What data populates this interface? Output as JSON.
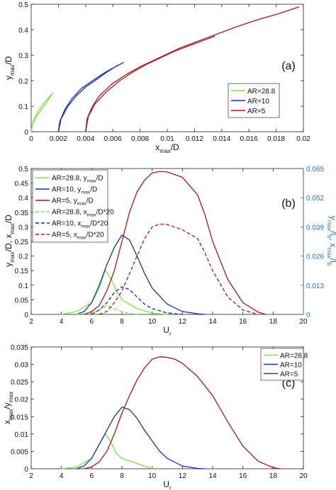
{
  "colors": {
    "green": "#7ee04a",
    "blue": "#1b2db0",
    "red": "#a5191b",
    "right_axis": "#2f6eb5",
    "axis": "#222222"
  },
  "chart_data": [
    {
      "type": "line",
      "panel_label": "(a)",
      "xlabel_main": "x",
      "xlabel_sub": "max",
      "xlabel_tail": "/D",
      "ylabel_main": "y",
      "ylabel_sub": "max",
      "ylabel_tail": "/D",
      "xlim": [
        0,
        0.02
      ],
      "ylim": [
        0,
        0.5
      ],
      "x_ticks": [
        0,
        0.002,
        0.004,
        0.006,
        0.008,
        0.01,
        0.012,
        0.014,
        0.016,
        0.018,
        0.02
      ],
      "x_tick_labels": [
        "0",
        "0.002",
        "0.004",
        "0.006",
        "0.008",
        "0.01",
        "0.012",
        "0.014",
        "0.016",
        "0.018",
        "0.02"
      ],
      "y_ticks": [
        0,
        0.1,
        0.2,
        0.3,
        0.4,
        0.5
      ],
      "y_tick_labels": [
        "0",
        "0.1",
        "0.2",
        "0.3",
        "0.4",
        "0.5"
      ],
      "legend_position": "middle-right",
      "series": [
        {
          "name": "AR=28.8",
          "color": "#7ee04a",
          "dash": false,
          "x": [
            0,
            5e-05,
            0.0002,
            0.0005,
            0.0009,
            0.0013,
            0.0016
          ],
          "y": [
            0,
            0.02,
            0.05,
            0.08,
            0.11,
            0.135,
            0.153
          ]
        },
        {
          "name": "",
          "color": "#7ee04a",
          "dash": false,
          "legend": false,
          "x": [
            0,
            0.0001,
            0.0004,
            0.0008,
            0.0012,
            0.0015
          ],
          "y": [
            0,
            0.03,
            0.06,
            0.09,
            0.12,
            0.145
          ]
        },
        {
          "name": "AR=10",
          "color": "#1b2db0",
          "dash": false,
          "x": [
            0.002,
            0.0021,
            0.0025,
            0.003,
            0.0037,
            0.0045,
            0.0055,
            0.0062,
            0.0068
          ],
          "y": [
            0,
            0.04,
            0.09,
            0.13,
            0.17,
            0.2,
            0.235,
            0.255,
            0.272
          ]
        },
        {
          "name": "",
          "color": "#1b2db0",
          "dash": false,
          "legend": false,
          "x": [
            0.002,
            0.0022,
            0.0027,
            0.0033,
            0.004,
            0.0048,
            0.0056,
            0.0064
          ],
          "y": [
            0,
            0.05,
            0.1,
            0.14,
            0.175,
            0.205,
            0.235,
            0.262
          ]
        },
        {
          "name": "AR=5",
          "color": "#a5191b",
          "dash": false,
          "x": [
            0.004,
            0.0041,
            0.0045,
            0.005,
            0.006,
            0.007,
            0.008,
            0.009,
            0.01,
            0.011,
            0.012,
            0.013,
            0.014,
            0.015,
            0.016,
            0.017,
            0.018,
            0.0197
          ],
          "y": [
            0,
            0.05,
            0.1,
            0.14,
            0.19,
            0.225,
            0.255,
            0.28,
            0.305,
            0.33,
            0.35,
            0.37,
            0.39,
            0.41,
            0.428,
            0.445,
            0.46,
            0.49
          ]
        },
        {
          "name": "",
          "color": "#a5191b",
          "dash": false,
          "legend": false,
          "x": [
            0.004,
            0.0042,
            0.0047,
            0.0055,
            0.0065,
            0.0075,
            0.0085,
            0.0095,
            0.0105,
            0.0115,
            0.0125,
            0.0135
          ],
          "y": [
            0,
            0.06,
            0.11,
            0.155,
            0.2,
            0.235,
            0.265,
            0.29,
            0.315,
            0.335,
            0.355,
            0.375
          ]
        }
      ]
    },
    {
      "type": "line",
      "panel_label": "(b)",
      "xlabel_main": "U",
      "xlabel_sub": "r",
      "left_ylabel": [
        "y",
        "max",
        "/D,  x",
        "max",
        "/D"
      ],
      "right_ylabel": [
        "y",
        "max",
        "/l",
        "b",
        ", x",
        "max",
        "/l",
        "b"
      ],
      "xlim": [
        2,
        20
      ],
      "ylim": [
        0,
        0.5
      ],
      "ylim_right": [
        0,
        0.065
      ],
      "x_ticks": [
        2,
        4,
        6,
        8,
        10,
        12,
        14,
        16,
        18,
        20
      ],
      "x_tick_labels": [
        "2",
        "4",
        "6",
        "8",
        "10",
        "12",
        "14",
        "16",
        "18",
        "20"
      ],
      "y_ticks": [
        0,
        0.05,
        0.1,
        0.15,
        0.2,
        0.25,
        0.3,
        0.35,
        0.4,
        0.45,
        0.5
      ],
      "y_tick_labels": [
        "0",
        "0.05",
        "0.1",
        "0.15",
        "0.2",
        "0.25",
        "0.3",
        "0.35",
        "0.4",
        "0.45",
        "0.5"
      ],
      "y_ticks_right": [
        0,
        0.013,
        0.026,
        0.039,
        0.052,
        0.065
      ],
      "y_tick_labels_right": [
        "0",
        "0.013",
        "0.026",
        "0.039",
        "0.052",
        "0.065"
      ],
      "legend_position": "top-left",
      "series": [
        {
          "name": "AR=28.8, y",
          "sub": "max",
          "tail": "/D",
          "color": "#7ee04a",
          "dash": false,
          "x": [
            4,
            5,
            6,
            6.5,
            6.9,
            7.3,
            7.6,
            8,
            9,
            10,
            11
          ],
          "y": [
            0,
            0.01,
            0.04,
            0.09,
            0.152,
            0.12,
            0.085,
            0.05,
            0.02,
            0.004,
            0
          ]
        },
        {
          "name": "AR=10, y",
          "sub": "max",
          "tail": "/D",
          "color": "#1b2db0",
          "dash": false,
          "x": [
            5,
            5.5,
            6,
            6.5,
            7,
            7.5,
            8,
            8.5,
            9,
            9.5,
            10,
            11,
            12,
            13,
            13.5
          ],
          "y": [
            0,
            0.01,
            0.04,
            0.1,
            0.17,
            0.23,
            0.272,
            0.255,
            0.2,
            0.14,
            0.09,
            0.035,
            0.01,
            0.002,
            0
          ]
        },
        {
          "name": "AR=5, y",
          "sub": "max",
          "tail": "/D",
          "color": "#a5191b",
          "dash": false,
          "x": [
            5.5,
            6,
            6.5,
            7,
            7.5,
            8,
            8.5,
            9,
            9.5,
            10,
            10.5,
            11,
            12,
            13,
            13.5,
            14,
            15,
            16,
            17,
            17.5
          ],
          "y": [
            0,
            0.01,
            0.03,
            0.08,
            0.15,
            0.25,
            0.35,
            0.42,
            0.46,
            0.485,
            0.49,
            0.488,
            0.47,
            0.41,
            0.34,
            0.25,
            0.12,
            0.04,
            0.008,
            0
          ]
        },
        {
          "name": "AR=28.8, x",
          "sub": "max",
          "tail": "/D*20",
          "color": "#7ee04a",
          "dash": true,
          "x": [
            5,
            6,
            6.5,
            7,
            7.5,
            8,
            8.5,
            9
          ],
          "y": [
            0,
            0.005,
            0.015,
            0.03,
            0.02,
            0.01,
            0.003,
            0
          ]
        },
        {
          "name": "AR=10, x",
          "sub": "max",
          "tail": "/D*20",
          "color": "#1b2db0",
          "dash": true,
          "x": [
            6,
            6.5,
            7,
            7.5,
            8,
            8.5,
            9,
            9.5,
            10,
            11,
            12
          ],
          "y": [
            0,
            0.015,
            0.04,
            0.075,
            0.095,
            0.085,
            0.06,
            0.035,
            0.02,
            0.005,
            0
          ]
        },
        {
          "name": "AR=5, x",
          "sub": "max",
          "tail": "/D*20",
          "color": "#a5191b",
          "dash": true,
          "x": [
            6.5,
            7,
            7.5,
            8,
            8.5,
            9,
            9.5,
            10,
            10.5,
            11,
            12,
            13,
            13.5,
            14,
            15,
            16,
            17
          ],
          "y": [
            0,
            0.01,
            0.04,
            0.08,
            0.14,
            0.2,
            0.26,
            0.3,
            0.31,
            0.308,
            0.29,
            0.26,
            0.21,
            0.15,
            0.06,
            0.015,
            0
          ]
        }
      ]
    },
    {
      "type": "line",
      "panel_label": "(c)",
      "xlabel_main": "U",
      "xlabel_sub": "r",
      "ylabel_parts": [
        "x",
        "max",
        "/y",
        "max"
      ],
      "xlim": [
        2,
        20
      ],
      "ylim": [
        0,
        0.035
      ],
      "x_ticks": [
        2,
        4,
        6,
        8,
        10,
        12,
        14,
        16,
        18,
        20
      ],
      "x_tick_labels": [
        "2",
        "4",
        "6",
        "8",
        "10",
        "12",
        "14",
        "16",
        "18",
        "20"
      ],
      "y_ticks": [
        0,
        0.005,
        0.01,
        0.015,
        0.02,
        0.025,
        0.03,
        0.035
      ],
      "y_tick_labels": [
        "0",
        "0.005",
        "0.01",
        "0.015",
        "0.02",
        "0.025",
        "0.03",
        "0.035"
      ],
      "legend_position": "top-right",
      "series": [
        {
          "name": "AR=28.8",
          "color": "#7ee04a",
          "dash": false,
          "x": [
            4,
            5,
            6,
            6.5,
            6.9,
            7.3,
            7.6,
            8,
            9,
            10
          ],
          "y": [
            0,
            0.0005,
            0.003,
            0.007,
            0.01,
            0.0075,
            0.0045,
            0.003,
            0.0015,
            0
          ]
        },
        {
          "name": "AR=10",
          "color": "#1b2db0",
          "dash": false,
          "x": [
            5,
            5.5,
            6,
            6.5,
            7,
            7.5,
            8,
            8.5,
            9,
            9.5,
            10,
            10.5,
            11,
            12,
            13,
            13.5
          ],
          "y": [
            0,
            0.0008,
            0.003,
            0.007,
            0.011,
            0.015,
            0.0177,
            0.017,
            0.0145,
            0.011,
            0.008,
            0.005,
            0.003,
            0.0008,
            0.0001,
            0
          ]
        },
        {
          "name": "AR=5",
          "color": "#a5191b",
          "dash": false,
          "x": [
            5.5,
            6,
            6.5,
            7,
            7.5,
            8,
            8.5,
            9,
            9.5,
            10,
            10.5,
            11,
            11.5,
            12,
            13,
            14,
            15,
            16,
            17,
            18,
            18.5
          ],
          "y": [
            0,
            0.0005,
            0.002,
            0.005,
            0.01,
            0.016,
            0.021,
            0.0255,
            0.029,
            0.0315,
            0.0322,
            0.032,
            0.0315,
            0.0303,
            0.0265,
            0.021,
            0.0135,
            0.0065,
            0.0022,
            0.0003,
            0
          ]
        }
      ]
    }
  ]
}
